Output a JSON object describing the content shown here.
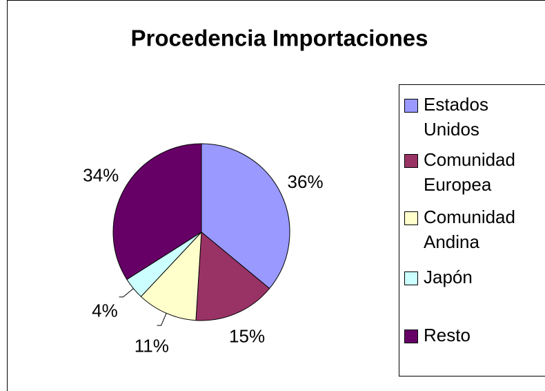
{
  "chart_data": {
    "type": "pie",
    "title": "Procedencia Importaciones",
    "categories": [
      "Estados Unidos",
      "Comunidad Europea",
      "Comunidad Andina",
      "Japón",
      "Resto"
    ],
    "values": [
      36,
      15,
      11,
      4,
      34
    ],
    "value_labels": [
      "36%",
      "15%",
      "11%",
      "4%",
      "34%"
    ],
    "colors": [
      "#9999ff",
      "#993366",
      "#ffffcc",
      "#ccffff",
      "#660066"
    ],
    "legend": "right"
  }
}
